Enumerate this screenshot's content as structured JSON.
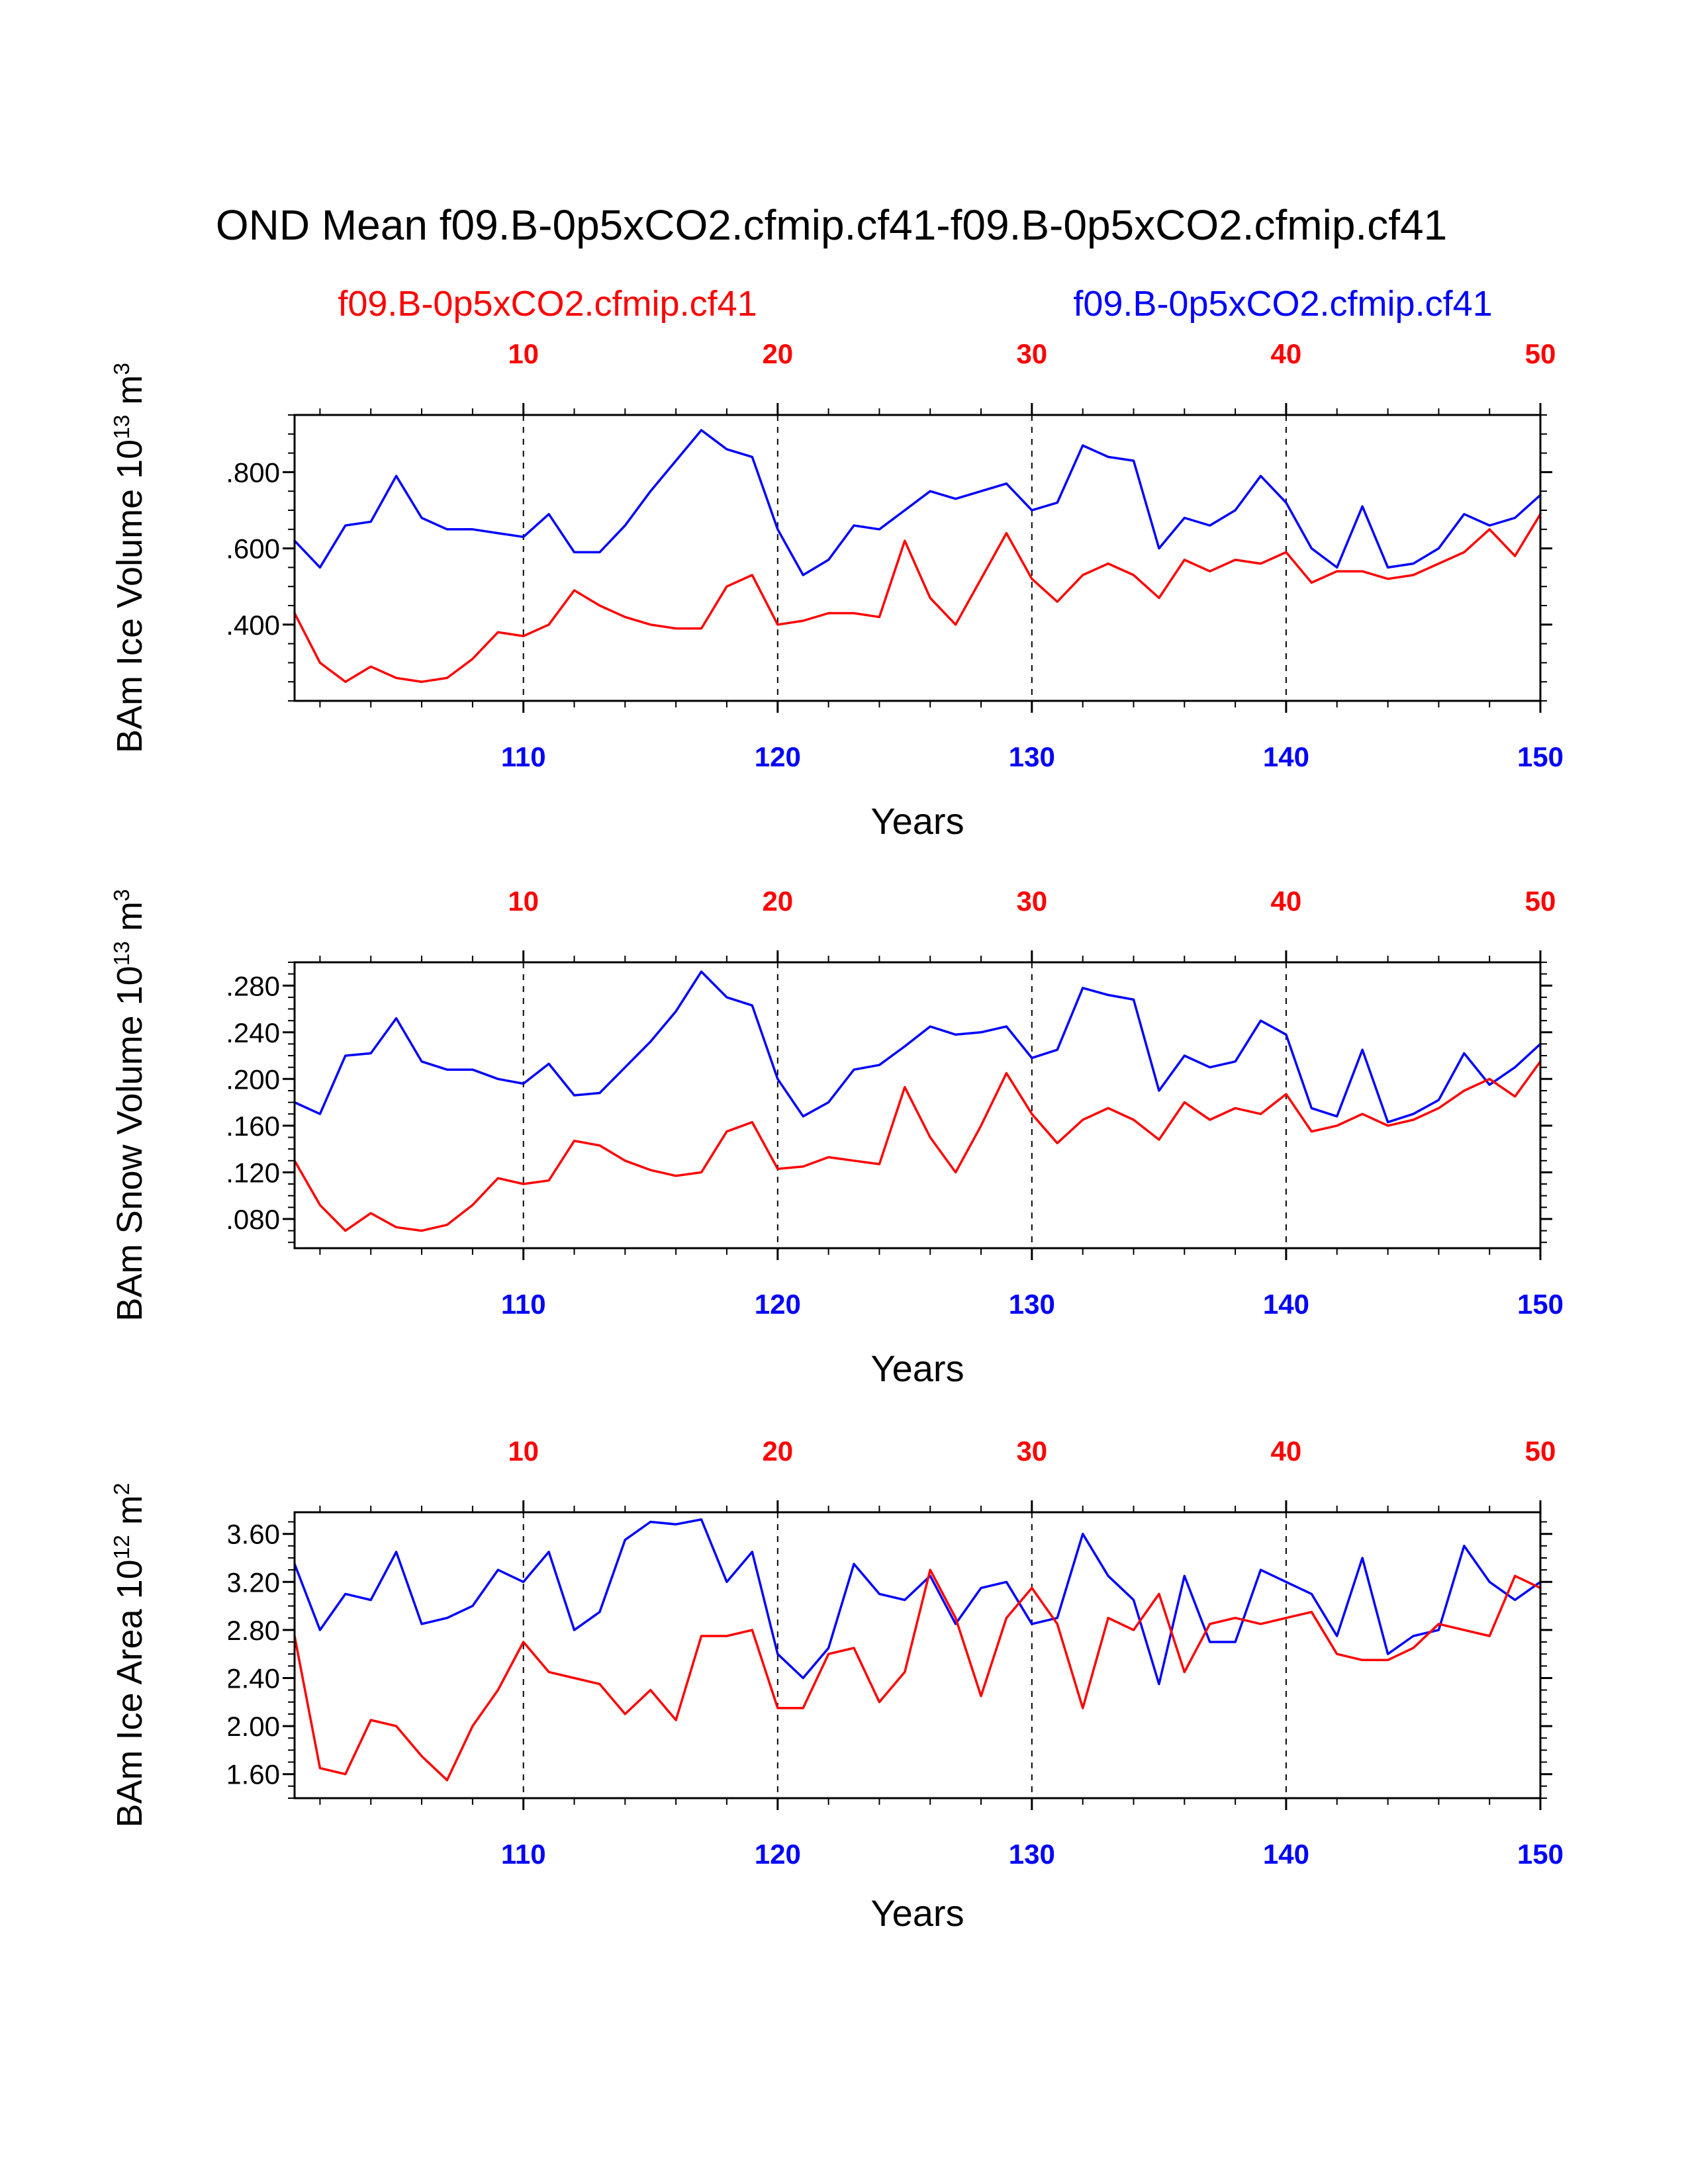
{
  "title": "OND Mean f09.B-0p5xCO2.cfmip.cf41-f09.B-0p5xCO2.cfmip.cf41",
  "legend": {
    "red_label": "f09.B-0p5xCO2.cfmip.cf41",
    "blue_label": "f09.B-0p5xCO2.cfmip.cf41",
    "red_color": "#ff0000",
    "blue_color": "#0000ff"
  },
  "chart_data": [
    {
      "type": "line",
      "xlabel": "Years",
      "ylabel": {
        "base": "BAm Ice Volume 10",
        "exp": "13",
        "mid": " m",
        "exp2": "3"
      },
      "x_start": 101,
      "x_end": 150,
      "x_axis_bottom": {
        "color": "#0000ff",
        "ticks": [
          110,
          120,
          130,
          140,
          150
        ],
        "minor_step": 2
      },
      "x_axis_top": {
        "color": "#ff0000",
        "ticks": [
          10,
          20,
          30,
          40,
          50
        ],
        "offset": 100,
        "minor_step": 2
      },
      "grid_x": [
        110,
        120,
        130,
        140
      ],
      "ylim": [
        0.2,
        0.95
      ],
      "yticks": {
        "values": [
          0.4,
          0.6,
          0.8
        ],
        "labels": [
          "0.400",
          "0.600",
          "0.800"
        ]
      },
      "y_minor_step": 0.05,
      "series": [
        {
          "name": "f09.B-0p5xCO2.cfmip.cf41",
          "color": "#0000ff",
          "values": [
            0.62,
            0.55,
            0.66,
            0.67,
            0.79,
            0.68,
            0.65,
            0.65,
            0.64,
            0.63,
            0.69,
            0.59,
            0.59,
            0.66,
            0.75,
            0.83,
            0.91,
            0.86,
            0.84,
            0.65,
            0.53,
            0.57,
            0.66,
            0.65,
            0.7,
            0.75,
            0.73,
            0.75,
            0.77,
            0.7,
            0.72,
            0.87,
            0.84,
            0.83,
            0.6,
            0.68,
            0.66,
            0.7,
            0.79,
            0.72,
            0.6,
            0.55,
            0.71,
            0.55,
            0.56,
            0.6,
            0.69,
            0.66,
            0.68,
            0.74
          ]
        },
        {
          "name": "f09.B-0p5xCO2.cfmip.cf41",
          "color": "#ff0000",
          "values": [
            0.43,
            0.3,
            0.25,
            0.29,
            0.26,
            0.25,
            0.26,
            0.31,
            0.38,
            0.37,
            0.4,
            0.49,
            0.45,
            0.42,
            0.4,
            0.39,
            0.39,
            0.5,
            0.53,
            0.4,
            0.41,
            0.43,
            0.43,
            0.42,
            0.62,
            0.47,
            0.4,
            0.52,
            0.64,
            0.52,
            0.46,
            0.53,
            0.56,
            0.53,
            0.47,
            0.57,
            0.54,
            0.57,
            0.56,
            0.59,
            0.51,
            0.54,
            0.54,
            0.52,
            0.53,
            0.56,
            0.59,
            0.65,
            0.58,
            0.69
          ]
        }
      ]
    },
    {
      "type": "line",
      "xlabel": "Years",
      "ylabel": {
        "base": "BAm Snow Volume 10",
        "exp": "13",
        "mid": " m",
        "exp2": "3"
      },
      "x_start": 101,
      "x_end": 150,
      "x_axis_bottom": {
        "color": "#0000ff",
        "ticks": [
          110,
          120,
          130,
          140,
          150
        ],
        "minor_step": 2
      },
      "x_axis_top": {
        "color": "#ff0000",
        "ticks": [
          10,
          20,
          30,
          40,
          50
        ],
        "offset": 100,
        "minor_step": 2
      },
      "grid_x": [
        110,
        120,
        130,
        140
      ],
      "ylim": [
        0.055,
        0.3
      ],
      "yticks": {
        "values": [
          0.08,
          0.12,
          0.16,
          0.2,
          0.24,
          0.28
        ],
        "labels": [
          "0.080",
          "0.120",
          "0.160",
          "0.200",
          "0.240",
          "0.280"
        ]
      },
      "y_minor_step": 0.01,
      "series": [
        {
          "name": "f09.B-0p5xCO2.cfmip.cf41",
          "color": "#0000ff",
          "values": [
            0.18,
            0.17,
            0.22,
            0.222,
            0.252,
            0.215,
            0.208,
            0.208,
            0.2,
            0.196,
            0.213,
            0.186,
            0.188,
            0.21,
            0.232,
            0.258,
            0.292,
            0.27,
            0.263,
            0.2,
            0.168,
            0.18,
            0.208,
            0.212,
            0.228,
            0.245,
            0.238,
            0.24,
            0.245,
            0.218,
            0.225,
            0.278,
            0.272,
            0.268,
            0.19,
            0.22,
            0.21,
            0.215,
            0.25,
            0.238,
            0.175,
            0.168,
            0.225,
            0.163,
            0.17,
            0.182,
            0.222,
            0.195,
            0.21,
            0.23
          ]
        },
        {
          "name": "f09.B-0p5xCO2.cfmip.cf41",
          "color": "#ff0000",
          "values": [
            0.13,
            0.092,
            0.07,
            0.085,
            0.073,
            0.07,
            0.075,
            0.092,
            0.115,
            0.11,
            0.113,
            0.147,
            0.143,
            0.13,
            0.122,
            0.117,
            0.12,
            0.155,
            0.163,
            0.123,
            0.125,
            0.133,
            0.13,
            0.127,
            0.193,
            0.15,
            0.12,
            0.16,
            0.205,
            0.17,
            0.145,
            0.165,
            0.175,
            0.165,
            0.148,
            0.18,
            0.165,
            0.175,
            0.17,
            0.187,
            0.155,
            0.16,
            0.17,
            0.16,
            0.165,
            0.175,
            0.19,
            0.2,
            0.185,
            0.215
          ]
        }
      ]
    },
    {
      "type": "line",
      "xlabel": "Years",
      "ylabel": {
        "base": "BAm Ice Area 10",
        "exp": "12",
        "mid": " m",
        "exp2": "2"
      },
      "x_start": 101,
      "x_end": 150,
      "x_axis_bottom": {
        "color": "#0000ff",
        "ticks": [
          110,
          120,
          130,
          140,
          150
        ],
        "minor_step": 2
      },
      "x_axis_top": {
        "color": "#ff0000",
        "ticks": [
          10,
          20,
          30,
          40,
          50
        ],
        "offset": 100,
        "minor_step": 2
      },
      "grid_x": [
        110,
        120,
        130,
        140
      ],
      "ylim": [
        1.4,
        3.78
      ],
      "yticks": {
        "values": [
          1.6,
          2.0,
          2.4,
          2.8,
          3.2,
          3.6
        ],
        "labels": [
          "1.60",
          "2.00",
          "2.40",
          "2.80",
          "3.20",
          "3.60"
        ]
      },
      "y_minor_step": 0.1,
      "series": [
        {
          "name": "f09.B-0p5xCO2.cfmip.cf41",
          "color": "#0000ff",
          "values": [
            3.35,
            2.8,
            3.1,
            3.05,
            3.45,
            2.85,
            2.9,
            3.0,
            3.3,
            3.2,
            3.45,
            2.8,
            2.95,
            3.55,
            3.7,
            3.68,
            3.72,
            3.2,
            3.45,
            2.6,
            2.4,
            2.65,
            3.35,
            3.1,
            3.05,
            3.25,
            2.85,
            3.15,
            3.2,
            2.85,
            2.9,
            3.6,
            3.25,
            3.05,
            2.35,
            3.25,
            2.7,
            2.7,
            3.3,
            3.2,
            3.1,
            2.75,
            3.4,
            2.6,
            2.75,
            2.8,
            3.5,
            3.2,
            3.05,
            3.2
          ]
        },
        {
          "name": "f09.B-0p5xCO2.cfmip.cf41",
          "color": "#ff0000",
          "values": [
            2.75,
            1.65,
            1.6,
            2.05,
            2.0,
            1.75,
            1.55,
            2.0,
            2.3,
            2.7,
            2.45,
            2.4,
            2.35,
            2.1,
            2.3,
            2.05,
            2.75,
            2.75,
            2.8,
            2.15,
            2.15,
            2.6,
            2.65,
            2.2,
            2.45,
            3.3,
            2.9,
            2.25,
            2.9,
            3.15,
            2.85,
            2.15,
            2.9,
            2.8,
            3.1,
            2.45,
            2.85,
            2.9,
            2.85,
            2.9,
            2.95,
            2.6,
            2.55,
            2.55,
            2.65,
            2.85,
            2.8,
            2.75,
            3.25,
            3.15
          ]
        }
      ]
    }
  ]
}
